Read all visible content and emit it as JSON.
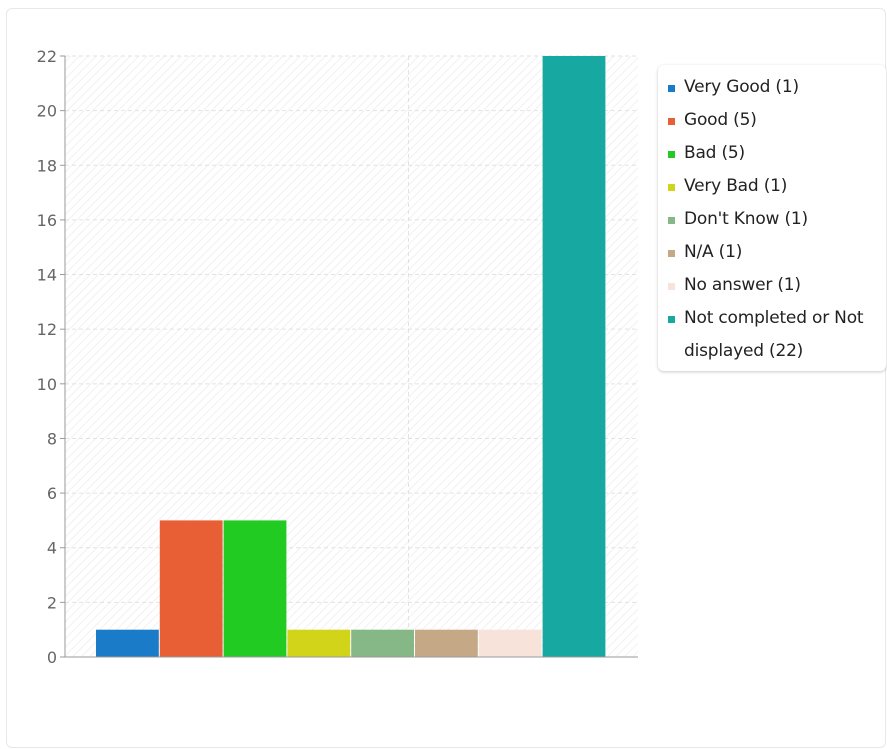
{
  "chart_data": {
    "type": "bar",
    "title": "",
    "xlabel": "",
    "ylabel": "",
    "ylim": [
      0,
      22
    ],
    "yticks": [
      0,
      2,
      4,
      6,
      8,
      10,
      12,
      14,
      16,
      18,
      20,
      22
    ],
    "grid": true,
    "legend_position": "top-right",
    "categories": [
      "Very Good (1)",
      "Good (5)",
      "Bad (5)",
      "Very Bad (1)",
      "Don't Know (1)",
      "N/A (1)",
      "No answer (1)",
      "Not completed or Not displayed (22)"
    ],
    "values": [
      1,
      5,
      5,
      1,
      1,
      1,
      1,
      22
    ],
    "colors": [
      "#1a7bc8",
      "#e85e35",
      "#21cb22",
      "#d2d41a",
      "#86b787",
      "#c5a986",
      "#f8e3da",
      "#16a8a1"
    ]
  }
}
